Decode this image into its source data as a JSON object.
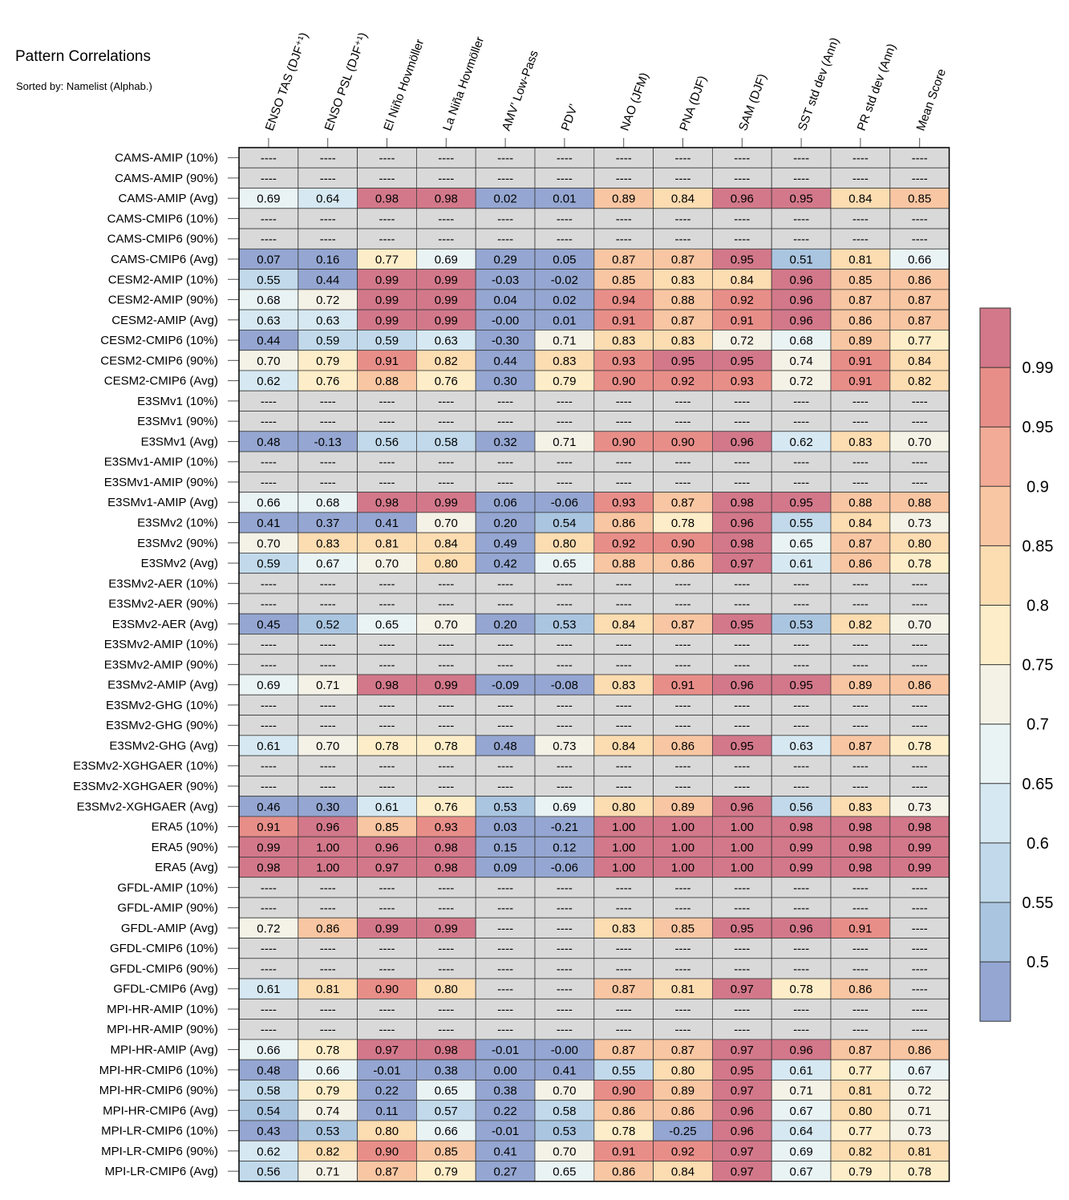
{
  "chart_data": {
    "type": "heatmap",
    "title": "Pattern Correlations",
    "subtitle": "Sorted by: Namelist (Alphab.)",
    "columns": [
      "ENSO TAS (DJF⁺¹)",
      "ENSO PSL (DJF⁺¹)",
      "El Niño Hovmöller",
      "La Niña Hovmöller",
      "AMV’ Low-Pass",
      "PDV’",
      "NAO (JFM)",
      "PNA (DJF)",
      "SAM (DJF)",
      "SST std dev (Ann)",
      "PR std dev (Ann)",
      "Mean Score"
    ],
    "rows": [
      {
        "label": "CAMS-AMIP (10%)",
        "values": [
          "----",
          "----",
          "----",
          "----",
          "----",
          "----",
          "----",
          "----",
          "----",
          "----",
          "----",
          "----"
        ]
      },
      {
        "label": "CAMS-AMIP (90%)",
        "values": [
          "----",
          "----",
          "----",
          "----",
          "----",
          "----",
          "----",
          "----",
          "----",
          "----",
          "----",
          "----"
        ]
      },
      {
        "label": "CAMS-AMIP (Avg)",
        "values": [
          "0.69",
          "0.64",
          "0.98",
          "0.98",
          "0.02",
          "0.01",
          "0.89",
          "0.84",
          "0.96",
          "0.95",
          "0.84",
          "0.85"
        ]
      },
      {
        "label": "CAMS-CMIP6 (10%)",
        "values": [
          "----",
          "----",
          "----",
          "----",
          "----",
          "----",
          "----",
          "----",
          "----",
          "----",
          "----",
          "----"
        ]
      },
      {
        "label": "CAMS-CMIP6 (90%)",
        "values": [
          "----",
          "----",
          "----",
          "----",
          "----",
          "----",
          "----",
          "----",
          "----",
          "----",
          "----",
          "----"
        ]
      },
      {
        "label": "CAMS-CMIP6 (Avg)",
        "values": [
          "0.07",
          "0.16",
          "0.77",
          "0.69",
          "0.29",
          "0.05",
          "0.87",
          "0.87",
          "0.95",
          "0.51",
          "0.81",
          "0.66"
        ]
      },
      {
        "label": "CESM2-AMIP (10%)",
        "values": [
          "0.55",
          "0.44",
          "0.99",
          "0.99",
          "-0.03",
          "-0.02",
          "0.85",
          "0.83",
          "0.84",
          "0.96",
          "0.85",
          "0.86"
        ]
      },
      {
        "label": "CESM2-AMIP (90%)",
        "values": [
          "0.68",
          "0.72",
          "0.99",
          "0.99",
          "0.04",
          "0.02",
          "0.94",
          "0.88",
          "0.92",
          "0.96",
          "0.87",
          "0.87"
        ]
      },
      {
        "label": "CESM2-AMIP (Avg)",
        "values": [
          "0.63",
          "0.63",
          "0.99",
          "0.99",
          "-0.00",
          "0.01",
          "0.91",
          "0.87",
          "0.91",
          "0.96",
          "0.86",
          "0.87"
        ]
      },
      {
        "label": "CESM2-CMIP6 (10%)",
        "values": [
          "0.44",
          "0.59",
          "0.59",
          "0.63",
          "-0.30",
          "0.71",
          "0.83",
          "0.83",
          "0.72",
          "0.68",
          "0.89",
          "0.77"
        ]
      },
      {
        "label": "CESM2-CMIP6 (90%)",
        "values": [
          "0.70",
          "0.79",
          "0.91",
          "0.82",
          "0.44",
          "0.83",
          "0.93",
          "0.95",
          "0.95",
          "0.74",
          "0.91",
          "0.84"
        ]
      },
      {
        "label": "CESM2-CMIP6 (Avg)",
        "values": [
          "0.62",
          "0.76",
          "0.88",
          "0.76",
          "0.30",
          "0.79",
          "0.90",
          "0.92",
          "0.93",
          "0.72",
          "0.91",
          "0.82"
        ]
      },
      {
        "label": "E3SMv1 (10%)",
        "values": [
          "----",
          "----",
          "----",
          "----",
          "----",
          "----",
          "----",
          "----",
          "----",
          "----",
          "----",
          "----"
        ]
      },
      {
        "label": "E3SMv1 (90%)",
        "values": [
          "----",
          "----",
          "----",
          "----",
          "----",
          "----",
          "----",
          "----",
          "----",
          "----",
          "----",
          "----"
        ]
      },
      {
        "label": "E3SMv1 (Avg)",
        "values": [
          "0.48",
          "-0.13",
          "0.56",
          "0.58",
          "0.32",
          "0.71",
          "0.90",
          "0.90",
          "0.96",
          "0.62",
          "0.83",
          "0.70"
        ]
      },
      {
        "label": "E3SMv1-AMIP (10%)",
        "values": [
          "----",
          "----",
          "----",
          "----",
          "----",
          "----",
          "----",
          "----",
          "----",
          "----",
          "----",
          "----"
        ]
      },
      {
        "label": "E3SMv1-AMIP (90%)",
        "values": [
          "----",
          "----",
          "----",
          "----",
          "----",
          "----",
          "----",
          "----",
          "----",
          "----",
          "----",
          "----"
        ]
      },
      {
        "label": "E3SMv1-AMIP (Avg)",
        "values": [
          "0.66",
          "0.68",
          "0.98",
          "0.99",
          "0.06",
          "-0.06",
          "0.93",
          "0.87",
          "0.98",
          "0.95",
          "0.88",
          "0.88"
        ]
      },
      {
        "label": "E3SMv2 (10%)",
        "values": [
          "0.41",
          "0.37",
          "0.41",
          "0.70",
          "0.20",
          "0.54",
          "0.86",
          "0.78",
          "0.96",
          "0.55",
          "0.84",
          "0.73"
        ]
      },
      {
        "label": "E3SMv2 (90%)",
        "values": [
          "0.70",
          "0.83",
          "0.81",
          "0.84",
          "0.49",
          "0.80",
          "0.92",
          "0.90",
          "0.98",
          "0.65",
          "0.87",
          "0.80"
        ]
      },
      {
        "label": "E3SMv2 (Avg)",
        "values": [
          "0.59",
          "0.67",
          "0.70",
          "0.80",
          "0.42",
          "0.65",
          "0.88",
          "0.86",
          "0.97",
          "0.61",
          "0.86",
          "0.78"
        ]
      },
      {
        "label": "E3SMv2-AER (10%)",
        "values": [
          "----",
          "----",
          "----",
          "----",
          "----",
          "----",
          "----",
          "----",
          "----",
          "----",
          "----",
          "----"
        ]
      },
      {
        "label": "E3SMv2-AER (90%)",
        "values": [
          "----",
          "----",
          "----",
          "----",
          "----",
          "----",
          "----",
          "----",
          "----",
          "----",
          "----",
          "----"
        ]
      },
      {
        "label": "E3SMv2-AER (Avg)",
        "values": [
          "0.45",
          "0.52",
          "0.65",
          "0.70",
          "0.20",
          "0.53",
          "0.84",
          "0.87",
          "0.95",
          "0.53",
          "0.82",
          "0.70"
        ]
      },
      {
        "label": "E3SMv2-AMIP (10%)",
        "values": [
          "----",
          "----",
          "----",
          "----",
          "----",
          "----",
          "----",
          "----",
          "----",
          "----",
          "----",
          "----"
        ]
      },
      {
        "label": "E3SMv2-AMIP (90%)",
        "values": [
          "----",
          "----",
          "----",
          "----",
          "----",
          "----",
          "----",
          "----",
          "----",
          "----",
          "----",
          "----"
        ]
      },
      {
        "label": "E3SMv2-AMIP (Avg)",
        "values": [
          "0.69",
          "0.71",
          "0.98",
          "0.99",
          "-0.09",
          "-0.08",
          "0.83",
          "0.91",
          "0.96",
          "0.95",
          "0.89",
          "0.86"
        ]
      },
      {
        "label": "E3SMv2-GHG (10%)",
        "values": [
          "----",
          "----",
          "----",
          "----",
          "----",
          "----",
          "----",
          "----",
          "----",
          "----",
          "----",
          "----"
        ]
      },
      {
        "label": "E3SMv2-GHG (90%)",
        "values": [
          "----",
          "----",
          "----",
          "----",
          "----",
          "----",
          "----",
          "----",
          "----",
          "----",
          "----",
          "----"
        ]
      },
      {
        "label": "E3SMv2-GHG (Avg)",
        "values": [
          "0.61",
          "0.70",
          "0.78",
          "0.78",
          "0.48",
          "0.73",
          "0.84",
          "0.86",
          "0.95",
          "0.63",
          "0.87",
          "0.78"
        ]
      },
      {
        "label": "E3SMv2-XGHGAER (10%)",
        "values": [
          "----",
          "----",
          "----",
          "----",
          "----",
          "----",
          "----",
          "----",
          "----",
          "----",
          "----",
          "----"
        ]
      },
      {
        "label": "E3SMv2-XGHGAER (90%)",
        "values": [
          "----",
          "----",
          "----",
          "----",
          "----",
          "----",
          "----",
          "----",
          "----",
          "----",
          "----",
          "----"
        ]
      },
      {
        "label": "E3SMv2-XGHGAER (Avg)",
        "values": [
          "0.46",
          "0.30",
          "0.61",
          "0.76",
          "0.53",
          "0.69",
          "0.80",
          "0.89",
          "0.96",
          "0.56",
          "0.83",
          "0.73"
        ]
      },
      {
        "label": "ERA5 (10%)",
        "values": [
          "0.91",
          "0.96",
          "0.85",
          "0.93",
          "0.03",
          "-0.21",
          "1.00",
          "1.00",
          "1.00",
          "0.98",
          "0.98",
          "0.98"
        ]
      },
      {
        "label": "ERA5 (90%)",
        "values": [
          "0.99",
          "1.00",
          "0.96",
          "0.98",
          "0.15",
          "0.12",
          "1.00",
          "1.00",
          "1.00",
          "0.99",
          "0.98",
          "0.99"
        ]
      },
      {
        "label": "ERA5 (Avg)",
        "values": [
          "0.98",
          "1.00",
          "0.97",
          "0.98",
          "0.09",
          "-0.06",
          "1.00",
          "1.00",
          "1.00",
          "0.99",
          "0.98",
          "0.99"
        ]
      },
      {
        "label": "GFDL-AMIP (10%)",
        "values": [
          "----",
          "----",
          "----",
          "----",
          "----",
          "----",
          "----",
          "----",
          "----",
          "----",
          "----",
          "----"
        ]
      },
      {
        "label": "GFDL-AMIP (90%)",
        "values": [
          "----",
          "----",
          "----",
          "----",
          "----",
          "----",
          "----",
          "----",
          "----",
          "----",
          "----",
          "----"
        ]
      },
      {
        "label": "GFDL-AMIP (Avg)",
        "values": [
          "0.72",
          "0.86",
          "0.99",
          "0.99",
          "----",
          "----",
          "0.83",
          "0.85",
          "0.95",
          "0.96",
          "0.91",
          "----"
        ]
      },
      {
        "label": "GFDL-CMIP6 (10%)",
        "values": [
          "----",
          "----",
          "----",
          "----",
          "----",
          "----",
          "----",
          "----",
          "----",
          "----",
          "----",
          "----"
        ]
      },
      {
        "label": "GFDL-CMIP6 (90%)",
        "values": [
          "----",
          "----",
          "----",
          "----",
          "----",
          "----",
          "----",
          "----",
          "----",
          "----",
          "----",
          "----"
        ]
      },
      {
        "label": "GFDL-CMIP6 (Avg)",
        "values": [
          "0.61",
          "0.81",
          "0.90",
          "0.80",
          "----",
          "----",
          "0.87",
          "0.81",
          "0.97",
          "0.78",
          "0.86",
          "----"
        ]
      },
      {
        "label": "MPI-HR-AMIP (10%)",
        "values": [
          "----",
          "----",
          "----",
          "----",
          "----",
          "----",
          "----",
          "----",
          "----",
          "----",
          "----",
          "----"
        ]
      },
      {
        "label": "MPI-HR-AMIP (90%)",
        "values": [
          "----",
          "----",
          "----",
          "----",
          "----",
          "----",
          "----",
          "----",
          "----",
          "----",
          "----",
          "----"
        ]
      },
      {
        "label": "MPI-HR-AMIP (Avg)",
        "values": [
          "0.66",
          "0.78",
          "0.97",
          "0.98",
          "-0.01",
          "-0.00",
          "0.87",
          "0.87",
          "0.97",
          "0.96",
          "0.87",
          "0.86"
        ]
      },
      {
        "label": "MPI-HR-CMIP6 (10%)",
        "values": [
          "0.48",
          "0.66",
          "-0.01",
          "0.38",
          "0.00",
          "0.41",
          "0.55",
          "0.80",
          "0.95",
          "0.61",
          "0.77",
          "0.67"
        ]
      },
      {
        "label": "MPI-HR-CMIP6 (90%)",
        "values": [
          "0.58",
          "0.79",
          "0.22",
          "0.65",
          "0.38",
          "0.70",
          "0.90",
          "0.89",
          "0.97",
          "0.71",
          "0.81",
          "0.72"
        ]
      },
      {
        "label": "MPI-HR-CMIP6 (Avg)",
        "values": [
          "0.54",
          "0.74",
          "0.11",
          "0.57",
          "0.22",
          "0.58",
          "0.86",
          "0.86",
          "0.96",
          "0.67",
          "0.80",
          "0.71"
        ]
      },
      {
        "label": "MPI-LR-CMIP6 (10%)",
        "values": [
          "0.43",
          "0.53",
          "0.80",
          "0.66",
          "-0.01",
          "0.53",
          "0.78",
          "-0.25",
          "0.96",
          "0.64",
          "0.77",
          "0.73"
        ]
      },
      {
        "label": "MPI-LR-CMIP6 (90%)",
        "values": [
          "0.62",
          "0.82",
          "0.90",
          "0.85",
          "0.41",
          "0.70",
          "0.91",
          "0.92",
          "0.97",
          "0.69",
          "0.82",
          "0.81"
        ]
      },
      {
        "label": "MPI-LR-CMIP6 (Avg)",
        "values": [
          "0.56",
          "0.71",
          "0.87",
          "0.79",
          "0.27",
          "0.65",
          "0.86",
          "0.84",
          "0.97",
          "0.67",
          "0.79",
          "0.78"
        ]
      }
    ],
    "colorbar": {
      "labels": [
        "0.99",
        "0.95",
        "0.9",
        "0.85",
        "0.8",
        "0.75",
        "0.7",
        "0.65",
        "0.6",
        "0.55",
        "0.5"
      ],
      "colors_bottom_to_top": [
        "#94a6d1",
        "#aac5e0",
        "#c1d9ea",
        "#d6e8f1",
        "#e9f3f4",
        "#f4f2e6",
        "#fdedc8",
        "#fcdcb1",
        "#f8c6a2",
        "#f2ab96",
        "#e88e89",
        "#d2788a"
      ],
      "missing_color": "#d9d9d9"
    }
  }
}
